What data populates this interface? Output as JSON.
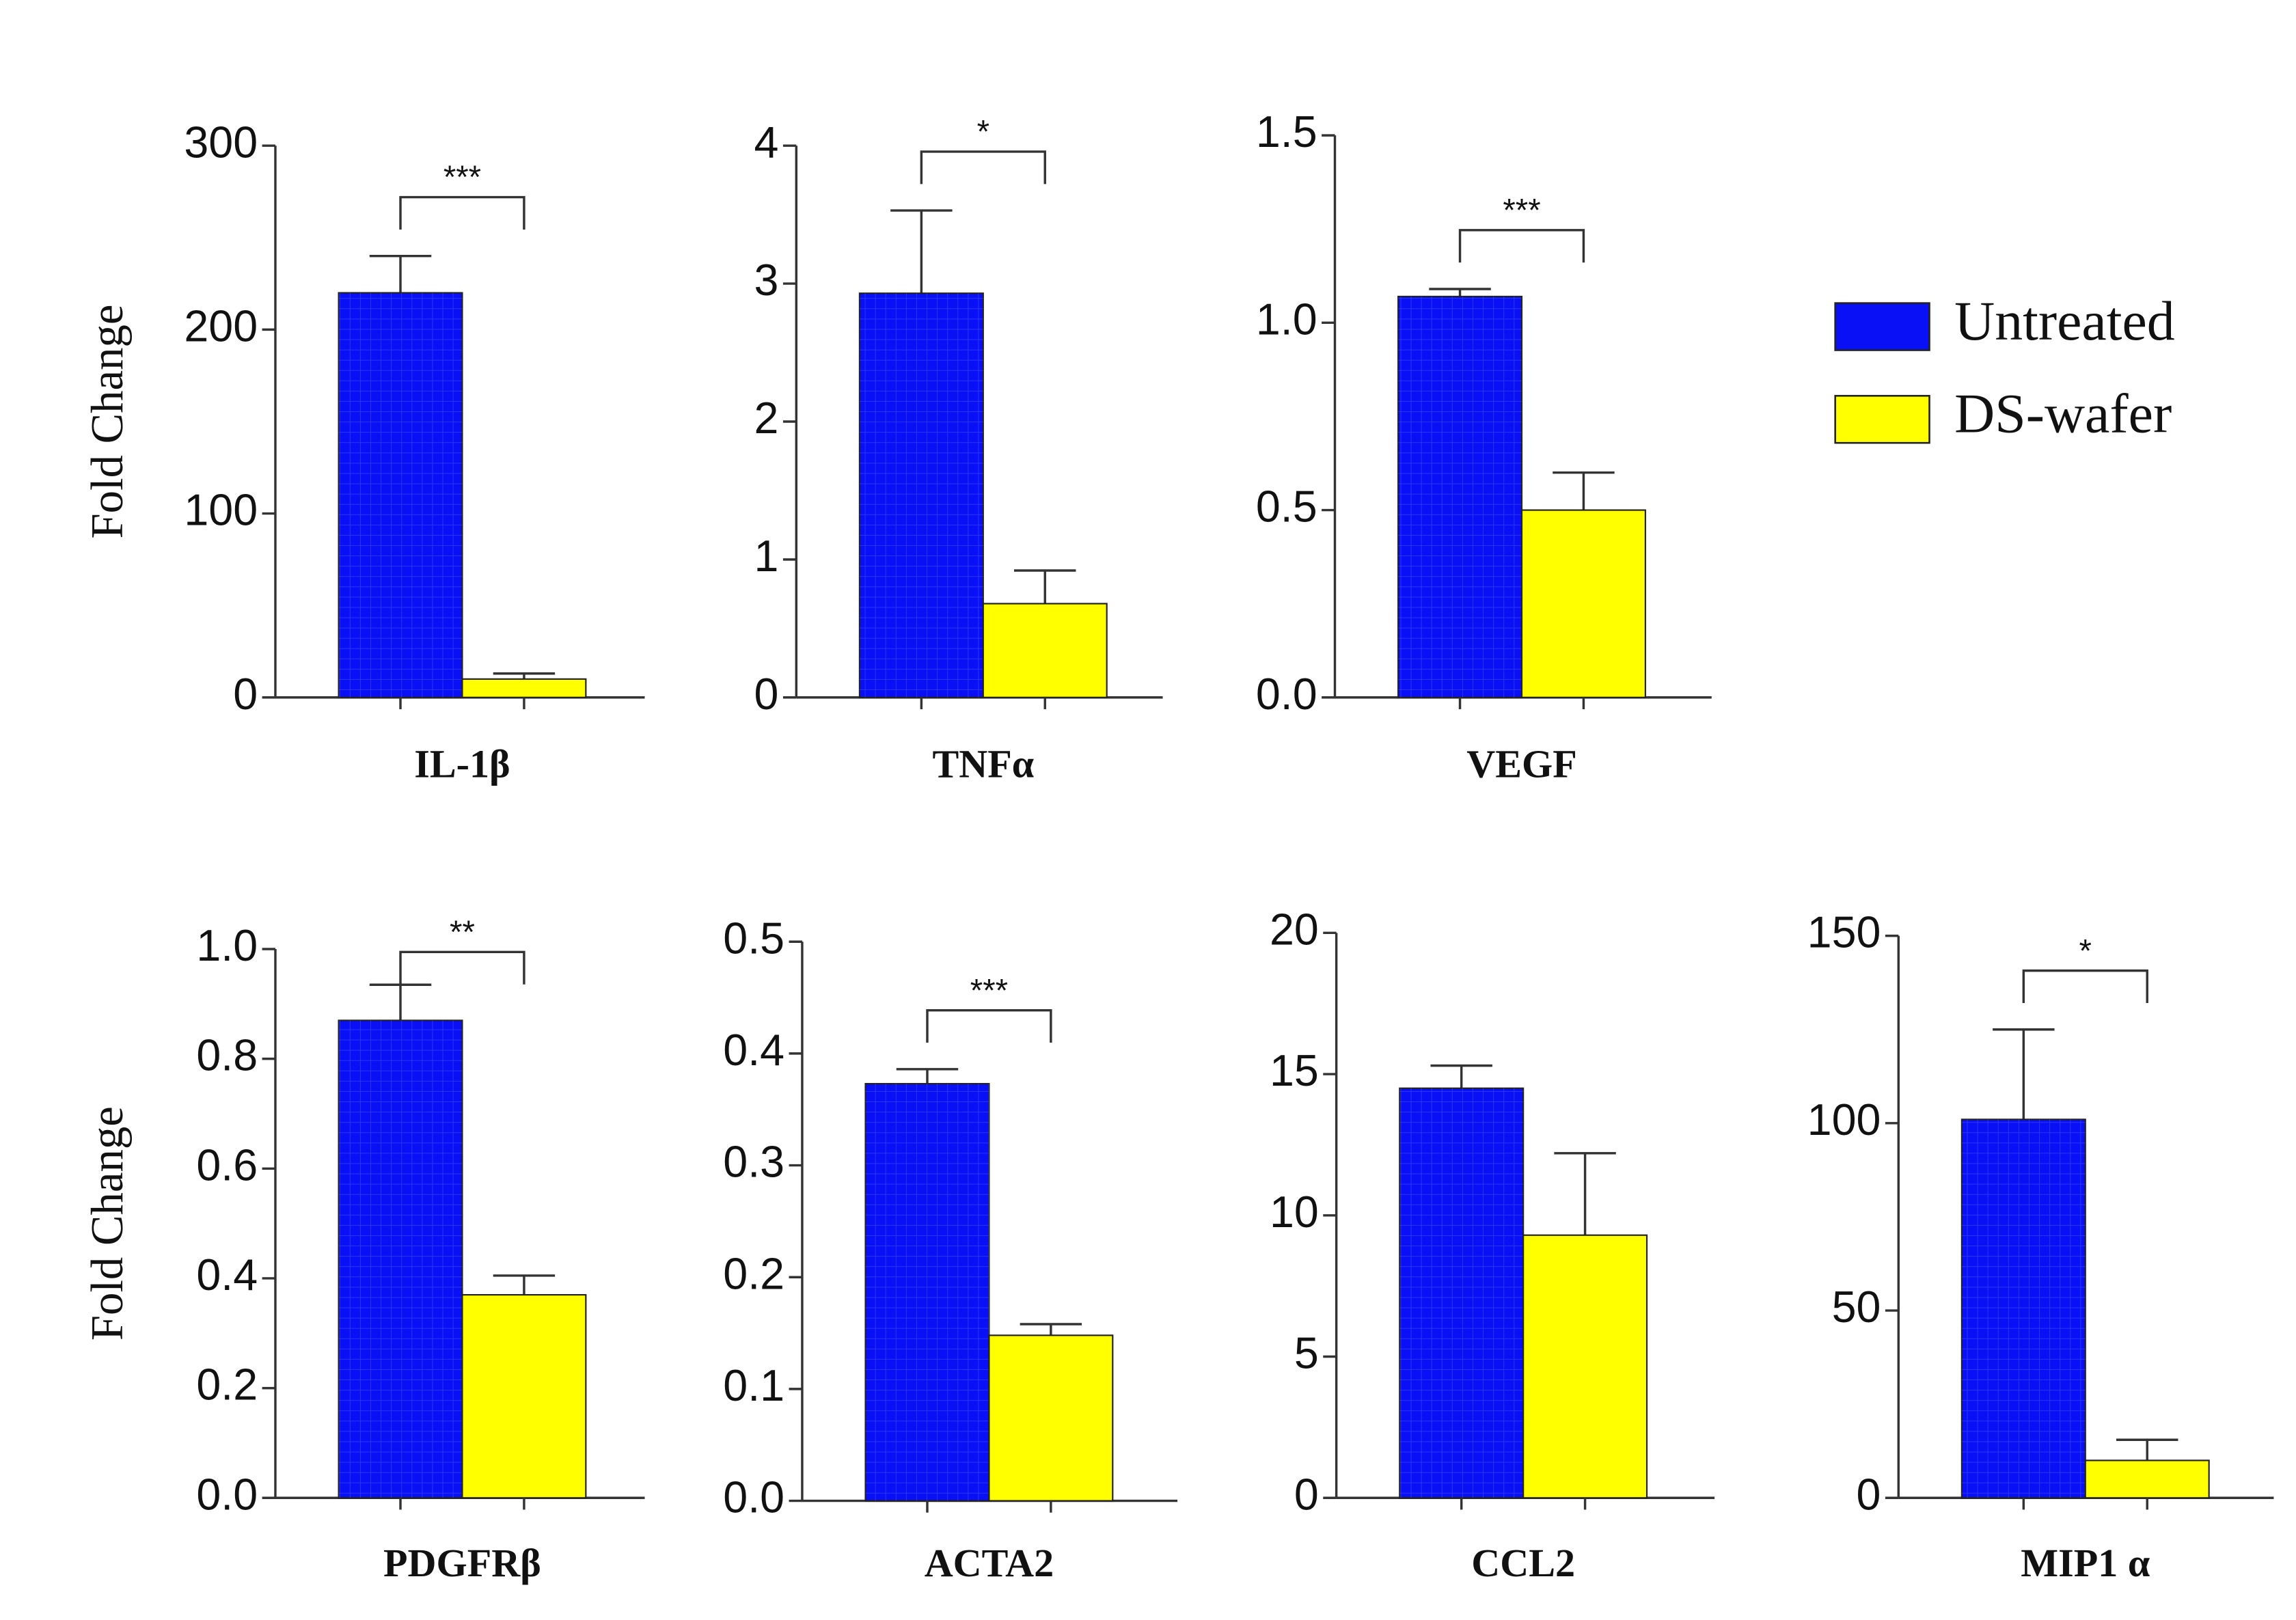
{
  "legend": [
    {
      "name": "Untreated",
      "color": "#0a10f5"
    },
    {
      "name": "DS-wafer",
      "color": "#ffff00"
    }
  ],
  "chart_data": [
    {
      "type": "bar",
      "title": "IL-1β",
      "ylabel": "Fold Change",
      "values": [
        220,
        10
      ],
      "errors": [
        20,
        3
      ],
      "significance": "***",
      "ylim": [
        0,
        300
      ],
      "yticks": [
        0,
        100,
        200,
        300
      ]
    },
    {
      "type": "bar",
      "title": "TNFα",
      "values": [
        2.93,
        0.68
      ],
      "errors": [
        0.6,
        0.24
      ],
      "significance": "*",
      "ylim": [
        0,
        4
      ],
      "yticks": [
        0,
        1,
        2,
        3,
        4
      ]
    },
    {
      "type": "bar",
      "title": "VEGF",
      "values": [
        1.07,
        0.5
      ],
      "errors": [
        0.02,
        0.1
      ],
      "significance": "***",
      "ylim": [
        0,
        1.5
      ],
      "yticks": [
        {
          "value": 0,
          "label": "0.0"
        },
        0.5,
        {
          "value": 1,
          "label": "1.0"
        },
        1.5
      ]
    },
    {
      "type": "bar",
      "title": "PDGFRβ",
      "ylabel": "Fold Change",
      "values": [
        0.87,
        0.37
      ],
      "errors": [
        0.065,
        0.035
      ],
      "significance": "**",
      "ylim": [
        0,
        1
      ],
      "yticks": [
        {
          "value": 0,
          "label": "0.0"
        },
        0.2,
        0.4,
        0.6,
        0.8,
        {
          "value": 1,
          "label": "1.0"
        }
      ]
    },
    {
      "type": "bar",
      "title": "ACTA2",
      "values": [
        0.373,
        0.148
      ],
      "errors": [
        0.013,
        0.01
      ],
      "significance": "***",
      "ylim": [
        0,
        0.5
      ],
      "yticks": [
        {
          "value": 0,
          "label": "0.0"
        },
        0.1,
        0.2,
        0.3,
        0.4,
        0.5
      ]
    },
    {
      "type": "bar",
      "title": "CCL2",
      "values": [
        14.5,
        9.3
      ],
      "errors": [
        0.8,
        2.9
      ],
      "ylim": [
        0,
        20
      ],
      "yticks": [
        0,
        5,
        10,
        15,
        20
      ]
    },
    {
      "type": "bar",
      "title": "MIP1 α",
      "values": [
        101,
        10
      ],
      "errors": [
        24,
        5.5
      ],
      "significance": "*",
      "ylim": [
        0,
        150
      ],
      "yticks": [
        0,
        50,
        100,
        150
      ]
    }
  ]
}
